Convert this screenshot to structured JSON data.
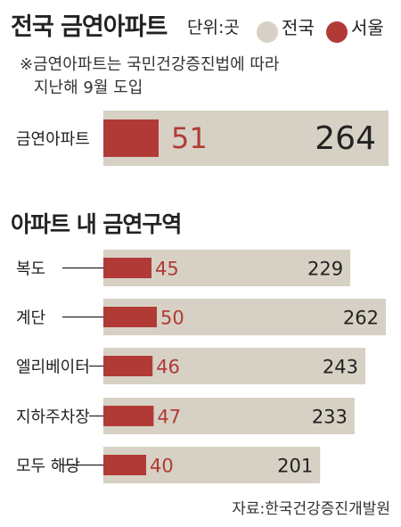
{
  "title": "전국 금연아파트",
  "unit_label": "단위:곳",
  "legend": [
    {
      "label": "전국",
      "color": "#d6d1c4"
    },
    {
      "label": "서울",
      "color": "#b23a36"
    }
  ],
  "note_lines": [
    "※금연아파트는 국민건강증진법에 따라",
    "지난해 9월 도입"
  ],
  "section_title": "아파트 내 금연구역",
  "source": "자료:한국건강증진개발원",
  "colors": {
    "national": "#d6d1c4",
    "seoul": "#b23a36",
    "text": "#222222"
  },
  "chart_data": [
    {
      "type": "bar",
      "categories": [
        "금연아파트"
      ],
      "series": [
        {
          "name": "전국",
          "values": [
            264
          ]
        },
        {
          "name": "서울",
          "values": [
            51
          ]
        }
      ],
      "xlim": [
        0,
        264
      ]
    },
    {
      "type": "bar",
      "title": "아파트 내 금연구역",
      "categories": [
        "복도",
        "계단",
        "엘리베이터",
        "지하주차장",
        "모두 해당"
      ],
      "series": [
        {
          "name": "전국",
          "values": [
            229,
            262,
            243,
            233,
            201
          ]
        },
        {
          "name": "서울",
          "values": [
            45,
            50,
            46,
            47,
            40
          ]
        }
      ],
      "xlim": [
        0,
        262
      ]
    }
  ]
}
